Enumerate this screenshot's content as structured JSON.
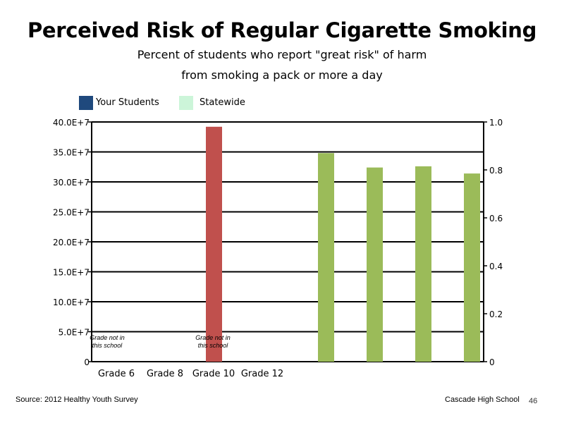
{
  "chart_data": {
    "type": "bar",
    "title": "Perceived Risk of Regular Cigarette Smoking",
    "subtitle": [
      "Percent of students who report \"great risk\" of harm",
      "from smoking a pack or more a day"
    ],
    "legend": {
      "placement": "top-left",
      "entries": [
        {
          "name": "Your Students",
          "color": "#1f497d"
        },
        {
          "name": "Statewide",
          "color": "#ccf5d9"
        }
      ]
    },
    "left_axis": {
      "ticks": [
        "0",
        "5.0E+7",
        "10.0E+7",
        "15.0E+7",
        "20.0E+7",
        "25.0E+7",
        "30.0E+7",
        "35.0E+7",
        "40.0E+7"
      ],
      "ylim": [
        0,
        400000000
      ]
    },
    "right_axis": {
      "ticks": [
        "0",
        "0.2",
        "0.4",
        "0.6",
        "0.8",
        "1.0"
      ],
      "ylim": [
        0,
        1.0
      ]
    },
    "grid": true,
    "categories": [
      "Grade 6",
      "Grade 8",
      "Grade 10",
      "Grade 12"
    ],
    "annotations": [
      {
        "category": "Grade 6",
        "lines": [
          "Grade not in",
          "this school"
        ]
      },
      {
        "category": "Grade 10",
        "lines": [
          "Grade not in",
          "this school"
        ]
      }
    ],
    "bars": [
      {
        "group": "red",
        "value": 0.98,
        "color": "#c0504d"
      },
      {
        "group": "green",
        "value": 0.87,
        "color": "#9bbb59"
      },
      {
        "group": "green",
        "value": 0.81,
        "color": "#9bbb59"
      },
      {
        "group": "green",
        "value": 0.815,
        "color": "#9bbb59"
      },
      {
        "group": "green",
        "value": 0.785,
        "color": "#9bbb59"
      }
    ]
  },
  "footer": {
    "source": "Source: 2012 Healthy Youth Survey",
    "school": "Cascade High School",
    "page": "46"
  }
}
